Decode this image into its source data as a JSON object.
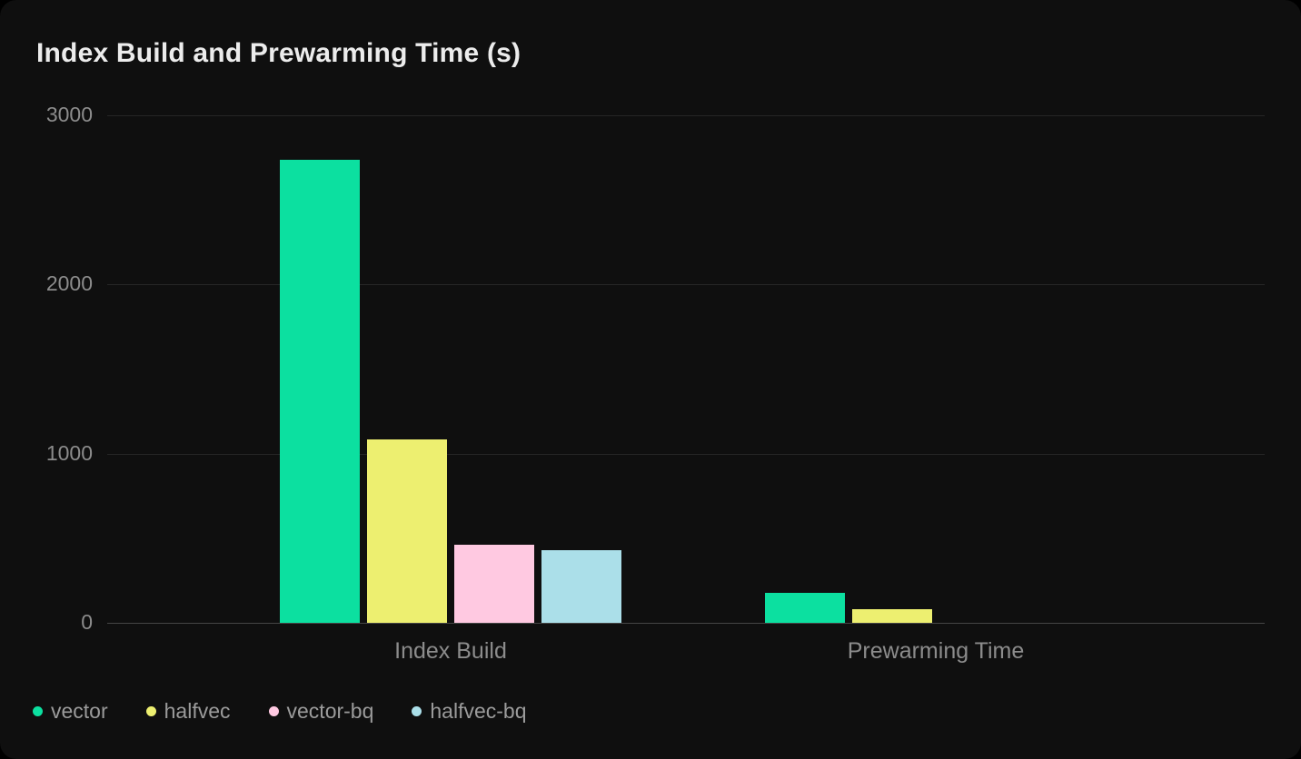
{
  "theme": {
    "page_bg": "#000000",
    "card_bg": "#0f0f0f",
    "title_color": "#ececec",
    "tick_color": "#8c8c8c",
    "xlabel_color": "#8c8c8c",
    "grid_color": "#262626",
    "axis_color": "#464646",
    "legend_color": "#9b9b9b"
  },
  "chart_data": {
    "type": "bar",
    "title": "Index Build and Prewarming Time (s)",
    "categories": [
      "Index Build",
      "Prewarming Time"
    ],
    "series": [
      {
        "name": "vector",
        "color": "#0ce0a0",
        "values": [
          2735,
          175
        ]
      },
      {
        "name": "halfvec",
        "color": "#edef70",
        "values": [
          1085,
          80
        ]
      },
      {
        "name": "vector-bq",
        "color": "#ffc9e1",
        "values": [
          460,
          0
        ]
      },
      {
        "name": "halfvec-bq",
        "color": "#abdfe9",
        "values": [
          430,
          0
        ]
      }
    ],
    "xlabel": "",
    "ylabel": "",
    "ylim": [
      0,
      3000
    ],
    "yticks": [
      0,
      1000,
      2000,
      3000
    ],
    "grid": true,
    "legend_position": "bottom-left"
  }
}
